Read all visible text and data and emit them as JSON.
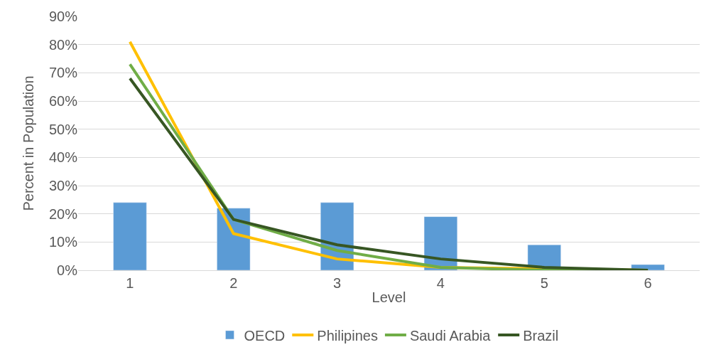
{
  "chart_data": {
    "type": "bar",
    "xlabel": "Level",
    "ylabel": "Percent in Population",
    "categories": [
      "1",
      "2",
      "3",
      "4",
      "5",
      "6"
    ],
    "series": [
      {
        "name": "OECD",
        "color": "#5b9bd5",
        "values": [
          24,
          22,
          24,
          19,
          9,
          2
        ]
      },
      {
        "name": "Philipines",
        "type": "line",
        "color": "#ffc000",
        "values": [
          81,
          13,
          4,
          1,
          0.5,
          0
        ]
      },
      {
        "name": "Saudi Arabia",
        "type": "line",
        "color": "#70ad47",
        "values": [
          73,
          18,
          7,
          1,
          0,
          0
        ]
      },
      {
        "name": "Brazil",
        "type": "line",
        "color": "#375623",
        "values": [
          68,
          18,
          9,
          4,
          1,
          0
        ]
      }
    ],
    "ylim": [
      0,
      90
    ],
    "yticks": [
      {
        "value": 0,
        "label": "0%"
      },
      {
        "value": 10,
        "label": "10%"
      },
      {
        "value": 20,
        "label": "20%"
      },
      {
        "value": 30,
        "label": "30%"
      },
      {
        "value": 40,
        "label": "40%"
      },
      {
        "value": 50,
        "label": "50%"
      },
      {
        "value": 60,
        "label": "60%"
      },
      {
        "value": 70,
        "label": "70%"
      },
      {
        "value": 80,
        "label": "80%"
      },
      {
        "value": 90,
        "label": "90%"
      }
    ],
    "grid": "y",
    "legend": "bottom",
    "marker": "none",
    "line_style": "solid"
  }
}
